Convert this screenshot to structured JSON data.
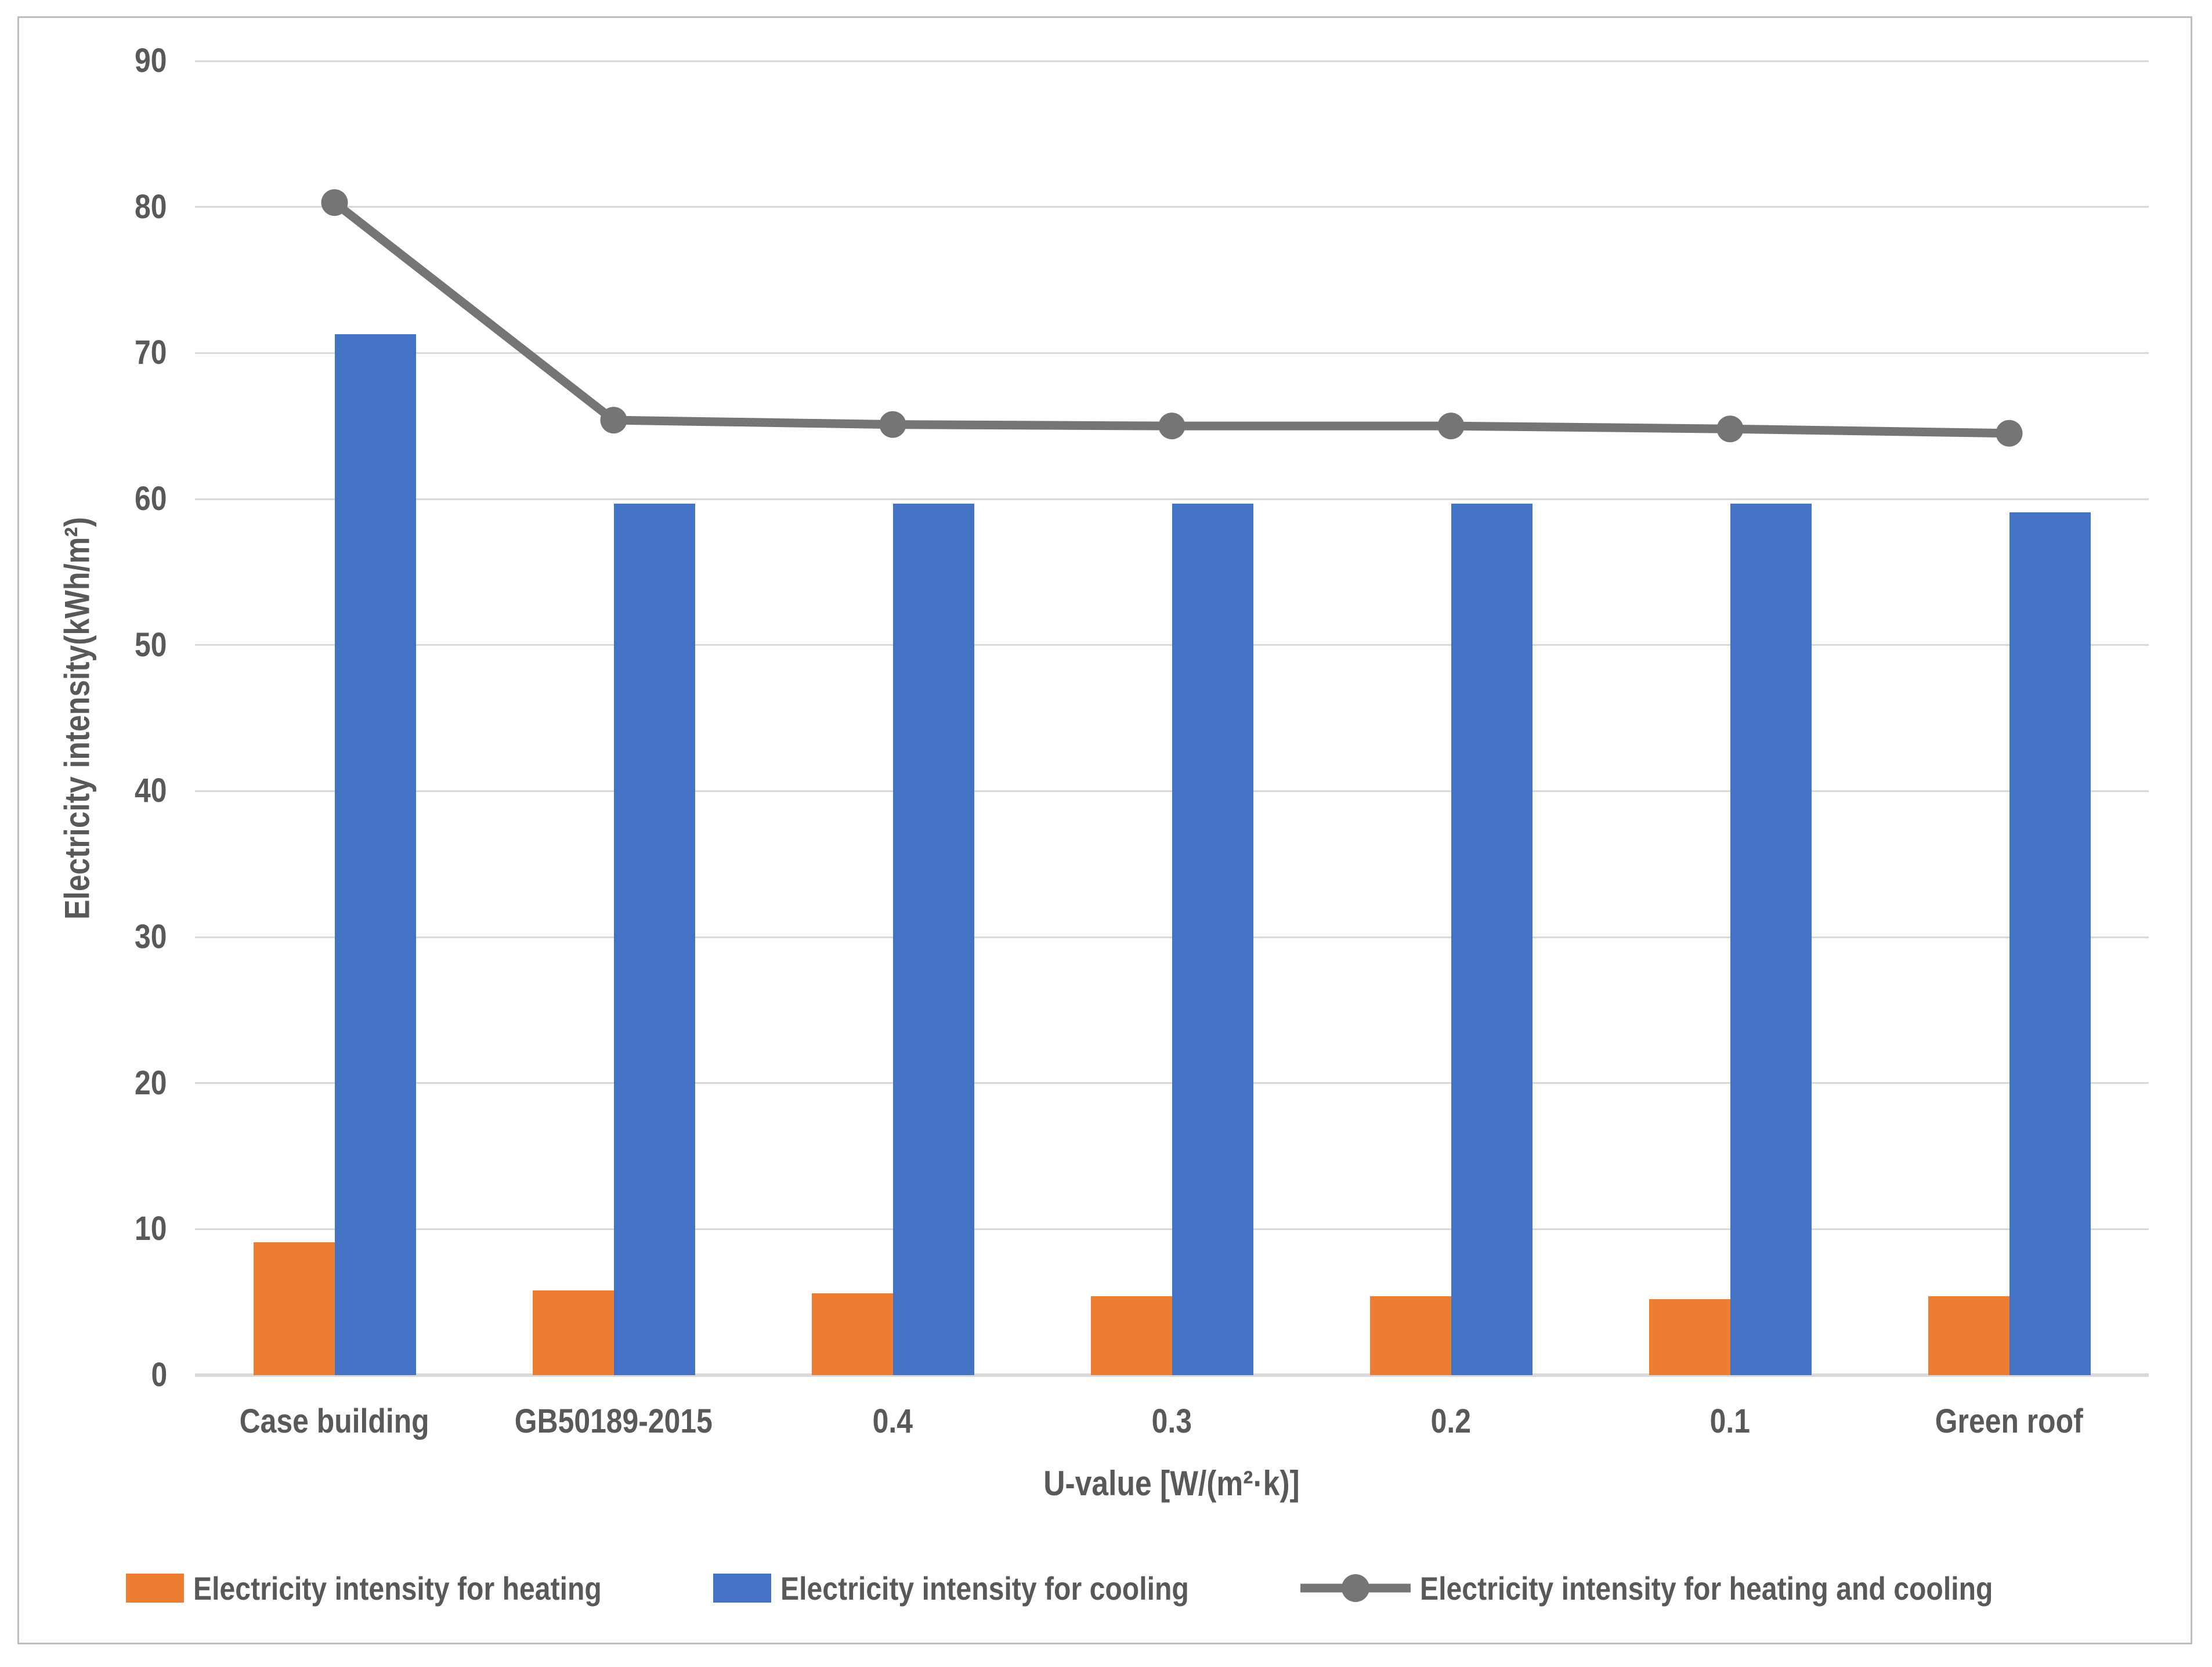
{
  "chart_data": {
    "type": "bar",
    "categories": [
      "Case building",
      "GB50189-2015",
      "0.4",
      "0.3",
      "0.2",
      "0.1",
      "Green roof"
    ],
    "series": [
      {
        "name": "Electricity intensity for heating",
        "type": "bar",
        "color": "#ED7D31",
        "values": [
          9.1,
          5.8,
          5.6,
          5.4,
          5.4,
          5.2,
          5.4
        ]
      },
      {
        "name": "Electricity intensity for cooling",
        "type": "bar",
        "color": "#4472C4",
        "values": [
          71.3,
          59.7,
          59.7,
          59.7,
          59.7,
          59.7,
          59.1
        ]
      },
      {
        "name": "Electricity intensity for heating and cooling",
        "type": "line",
        "color": "#757575",
        "values": [
          80.3,
          65.4,
          65.1,
          65.0,
          65.0,
          64.8,
          64.5
        ]
      }
    ],
    "title": "",
    "xlabel": "U-value [W/(m²·k)]",
    "ylabel": "Electricity intensity(kWh/m²)",
    "ylim": [
      0,
      90
    ],
    "ytick_step": 10,
    "grid": true,
    "legend_position": "bottom"
  },
  "colors": {
    "text": "#595959",
    "gridline": "#d9d9d9",
    "figure_border": "#bfbfbf",
    "heating_bar": "#ED7D31",
    "cooling_bar": "#4472C4",
    "line_series": "#757575"
  }
}
